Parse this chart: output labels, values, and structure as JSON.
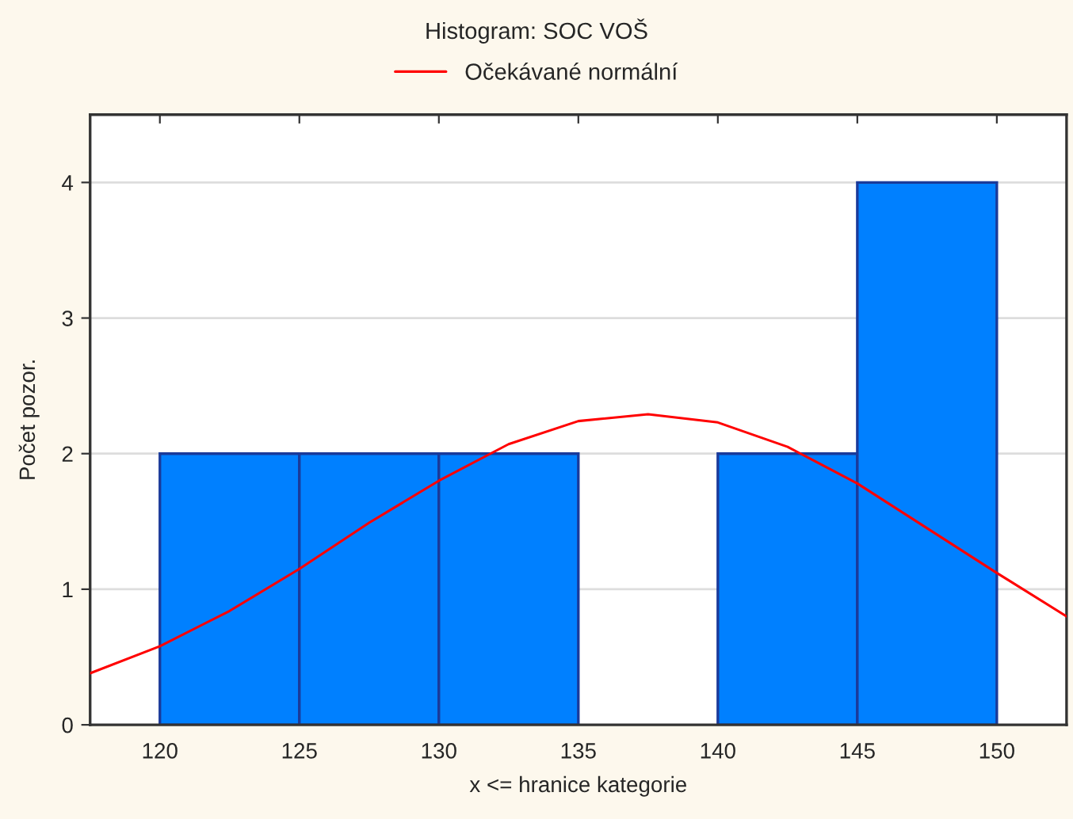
{
  "chart_data": {
    "type": "histogram",
    "title": "Histogram: SOC VOŠ",
    "xlabel": "x <= hranice kategorie",
    "ylabel": "Počet pozor.",
    "bins": [
      120,
      125,
      130,
      135,
      140,
      145,
      150
    ],
    "values": [
      2,
      2,
      2,
      0,
      2,
      4
    ],
    "color": "#0080ff",
    "series": [
      {
        "type": "line",
        "name": "Očekávané normální",
        "color": "#ff0000",
        "x": [
          117.5,
          120,
          122.5,
          125,
          127.5,
          130,
          132.5,
          135,
          137.5,
          140,
          142.5,
          145,
          147.5,
          150,
          152.5
        ],
        "values": [
          0.38,
          0.58,
          0.84,
          1.15,
          1.49,
          1.8,
          2.07,
          2.24,
          2.29,
          2.23,
          2.05,
          1.78,
          1.45,
          1.12,
          0.8
        ]
      }
    ],
    "xlim": [
      117.5,
      152.5
    ],
    "xticks": [
      120,
      125,
      130,
      135,
      140,
      145,
      150
    ],
    "ylim": [
      0,
      4.5
    ],
    "yticks": [
      0,
      1,
      2,
      3,
      4
    ],
    "grid": "y",
    "legend": "top"
  }
}
